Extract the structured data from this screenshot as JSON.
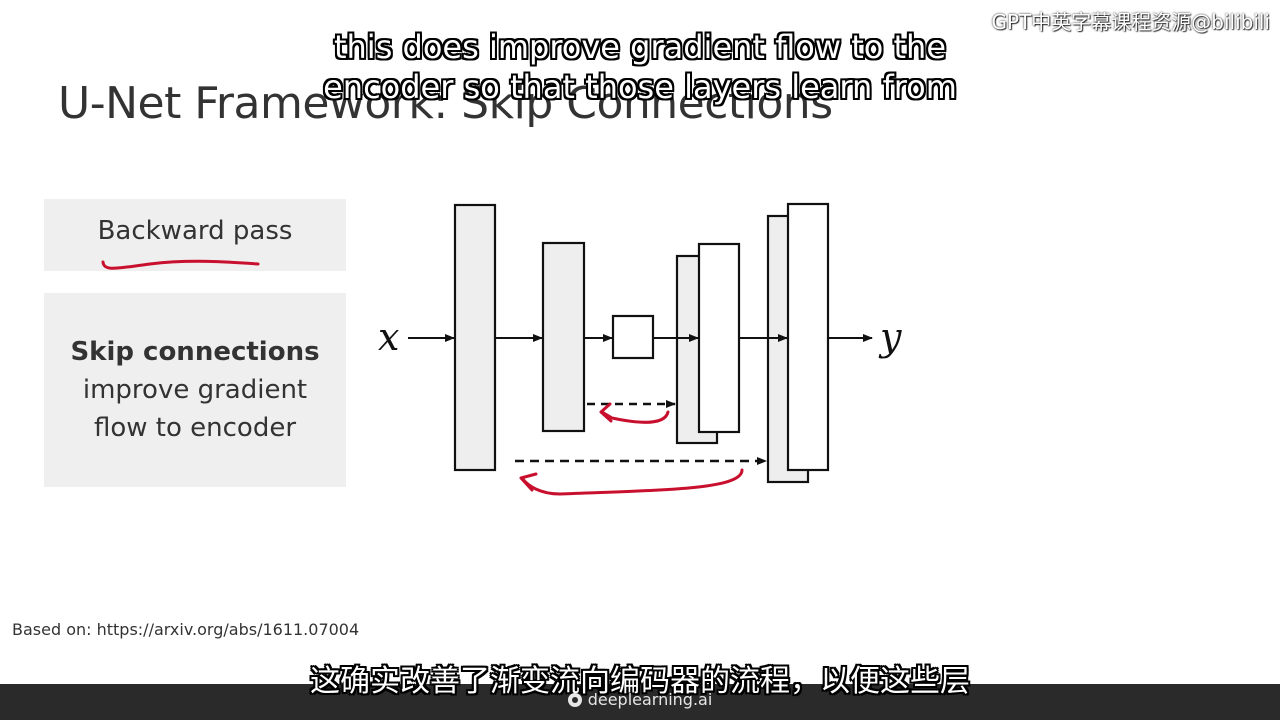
{
  "slide": {
    "title": "U-Net Framework: Skip Connections",
    "source": "Based on: https://arxiv.org/abs/1611.07004"
  },
  "watermark": "GPT中英字幕课程资源@bilibili",
  "cards": {
    "backward_pass": "Backward pass",
    "skip_bold": "Skip connections",
    "skip_line2": "improve gradient",
    "skip_line3": "flow to encoder"
  },
  "diagram": {
    "input_label": "x",
    "output_label": "y",
    "annotation_color": "#c8102e"
  },
  "subtitles": {
    "en_line1": "this does improve gradient flow to the",
    "en_line2": "encoder so that those layers learn from",
    "cn": "这确实改善了渐变流向编码器的流程，以便这些层"
  },
  "footer": {
    "brand": "deeplearning.ai"
  }
}
